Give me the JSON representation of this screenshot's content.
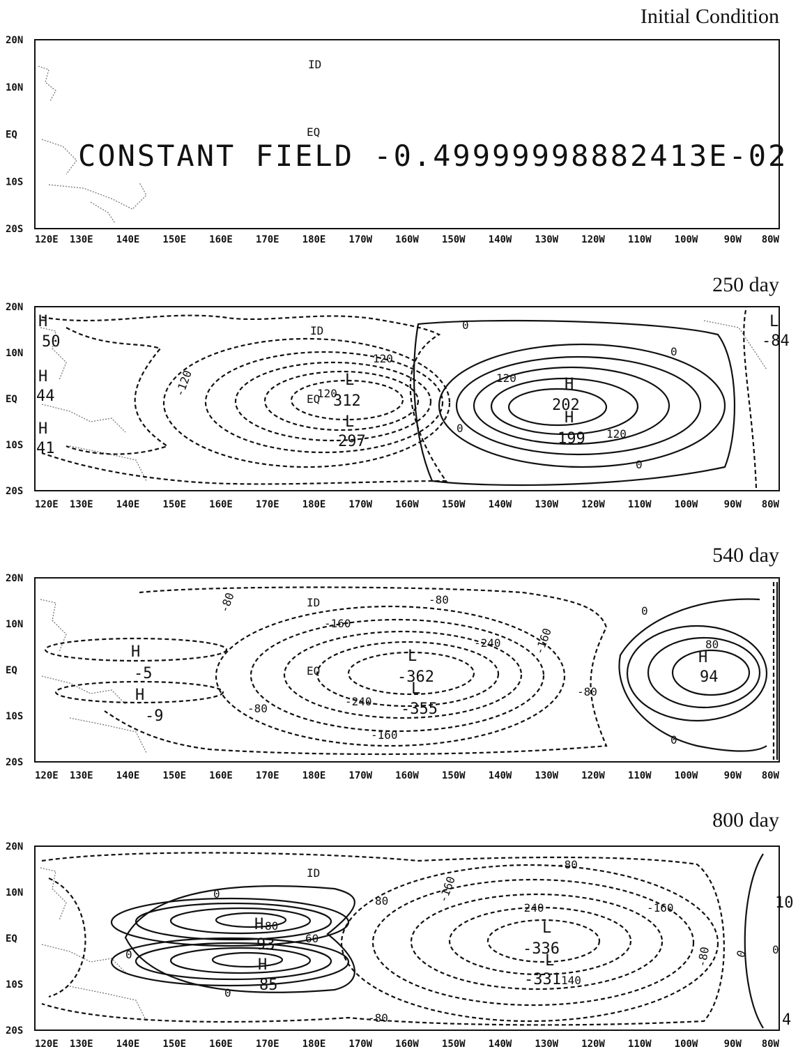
{
  "chart_data": [
    {
      "type": "contour",
      "title": "Initial Condition",
      "x_ticks": [
        "120E",
        "130E",
        "140E",
        "150E",
        "160E",
        "170E",
        "180E",
        "170W",
        "160W",
        "150W",
        "140W",
        "130W",
        "120W",
        "110W",
        "100W",
        "90W",
        "80W"
      ],
      "y_ticks": [
        "20N",
        "10N",
        "EQ",
        "10S",
        "20S"
      ],
      "xlim": [
        "120E",
        "80W"
      ],
      "ylim": [
        "20S",
        "20N"
      ],
      "annotation": "CONSTANT FIELD -0.49999998882413E-02",
      "map_labels": [
        {
          "text": "ID",
          "lon": 180,
          "lat": 15
        },
        {
          "text": "EQ",
          "lon": 180,
          "lat": 0
        }
      ]
    },
    {
      "type": "contour",
      "title": "250 day",
      "x_ticks": [
        "120E",
        "130E",
        "140E",
        "150E",
        "160E",
        "170E",
        "180E",
        "170W",
        "160W",
        "150W",
        "140W",
        "130W",
        "120W",
        "110W",
        "100W",
        "90W",
        "80W"
      ],
      "y_ticks": [
        "20N",
        "10N",
        "EQ",
        "10S",
        "20S"
      ],
      "xlim": [
        "120E",
        "80W"
      ],
      "ylim": [
        "20S",
        "20N"
      ],
      "contour_labels": [
        "0",
        "0",
        "0",
        "0",
        "120",
        "120",
        "120",
        "120",
        "-120"
      ],
      "extrema": [
        {
          "type": "H",
          "value": "50",
          "lon": 120.5,
          "lat": 15
        },
        {
          "type": "H",
          "value": "44",
          "lon": 120.5,
          "lat": 5
        },
        {
          "type": "H",
          "value": "41",
          "lon": 120.5,
          "lat": -6
        },
        {
          "type": "L",
          "value": "312",
          "lon": 185,
          "lat": 4
        },
        {
          "type": "L",
          "value": "297",
          "lon": 185,
          "lat": -5
        },
        {
          "type": "H",
          "value": "202",
          "lon": 233,
          "lat": 3
        },
        {
          "type": "H",
          "value": "199",
          "lon": 233,
          "lat": -2
        },
        {
          "type": "L",
          "value": "-84",
          "lon": 279,
          "lat": 14
        }
      ],
      "map_labels": [
        {
          "text": "ID",
          "lon": 180,
          "lat": 15
        },
        {
          "text": "EQ",
          "lon": 180,
          "lat": 0
        }
      ]
    },
    {
      "type": "contour",
      "title": "540 day",
      "x_ticks": [
        "120E",
        "130E",
        "140E",
        "150E",
        "160E",
        "170E",
        "180E",
        "170W",
        "160W",
        "150W",
        "140W",
        "130W",
        "120W",
        "110W",
        "100W",
        "90W",
        "80W"
      ],
      "y_ticks": [
        "20N",
        "10N",
        "EQ",
        "10S",
        "20S"
      ],
      "xlim": [
        "120E",
        "80W"
      ],
      "ylim": [
        "20S",
        "20N"
      ],
      "contour_labels": [
        "-80",
        "-80",
        "-80",
        "-80",
        "-160",
        "-160",
        "-160",
        "-240",
        "-240",
        "0",
        "0",
        "80"
      ],
      "extrema": [
        {
          "type": "H",
          "value": "-5",
          "lon": 143,
          "lat": 3
        },
        {
          "type": "H",
          "value": "-9",
          "lon": 144,
          "lat": -5
        },
        {
          "type": "L",
          "value": "-362",
          "lon": 200,
          "lat": 3
        },
        {
          "type": "L",
          "value": "-355",
          "lon": 200,
          "lat": -5
        },
        {
          "type": "H",
          "value": "94",
          "lon": 263,
          "lat": 3
        }
      ],
      "map_labels": [
        {
          "text": "ID",
          "lon": 180,
          "lat": 15
        },
        {
          "text": "EQ",
          "lon": 180,
          "lat": 0
        }
      ]
    },
    {
      "type": "contour",
      "title": "800 day",
      "x_ticks": [
        "120E",
        "130E",
        "140E",
        "150E",
        "160E",
        "170E",
        "180E",
        "170W",
        "160W",
        "150W",
        "140W",
        "130W",
        "120W",
        "110W",
        "100W",
        "90W",
        "80W"
      ],
      "y_ticks": [
        "20N",
        "10N",
        "EQ",
        "10S",
        "20S"
      ],
      "xlim": [
        "120E",
        "80W"
      ],
      "ylim": [
        "20S",
        "20N"
      ],
      "contour_labels": [
        "0",
        "0",
        "0",
        "0",
        "0",
        "80",
        "80",
        "60",
        "-80",
        "-80",
        "-80",
        "-160",
        "-160",
        "-240",
        "140",
        "10",
        "4"
      ],
      "extrema": [
        {
          "type": "H",
          "value": "93",
          "lon": 168,
          "lat": 3
        },
        {
          "type": "H",
          "value": "85",
          "lon": 167,
          "lat": -5
        },
        {
          "type": "L",
          "value": "-336",
          "lon": 229,
          "lat": 2
        },
        {
          "type": "L",
          "value": "-331",
          "lon": 229,
          "lat": -5
        }
      ],
      "map_labels": [
        {
          "text": "ID",
          "lon": 180,
          "lat": 15
        },
        {
          "text": "EQ",
          "lon": 180,
          "lat": 0
        }
      ]
    }
  ]
}
